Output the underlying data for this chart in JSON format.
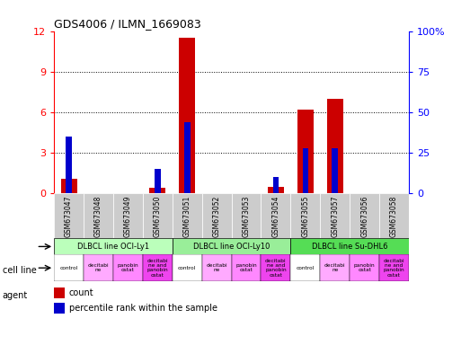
{
  "title": "GDS4006 / ILMN_1669083",
  "samples": [
    "GSM673047",
    "GSM673048",
    "GSM673049",
    "GSM673050",
    "GSM673051",
    "GSM673052",
    "GSM673053",
    "GSM673054",
    "GSM673055",
    "GSM673057",
    "GSM673056",
    "GSM673058"
  ],
  "count_values": [
    1.1,
    0,
    0,
    0.4,
    11.5,
    0,
    0,
    0.5,
    6.2,
    7.0,
    0,
    0
  ],
  "percentile_values": [
    35,
    0,
    0,
    15,
    44,
    0,
    0,
    10,
    28,
    28,
    0,
    0
  ],
  "ylim_left": [
    0,
    12
  ],
  "ylim_right": [
    0,
    100
  ],
  "yticks_left": [
    0,
    3,
    6,
    9,
    12
  ],
  "yticks_right": [
    0,
    25,
    50,
    75,
    100
  ],
  "bar_color_count": "#cc0000",
  "bar_color_pct": "#0000cc",
  "sample_bg_color": "#cccccc",
  "cell_line_colors": [
    "#bbffbb",
    "#99ee99",
    "#55dd55"
  ],
  "cell_line_labels": [
    "DLBCL line OCI-Ly1",
    "DLBCL line OCI-Ly10",
    "DLBCL line Su-DHL6"
  ],
  "cell_line_spans": [
    [
      0,
      3
    ],
    [
      4,
      7
    ],
    [
      8,
      11
    ]
  ],
  "agent_labels": [
    "control",
    "decitabi\nne",
    "panobin\nostat",
    "decitabi\nne and\npanobin\nostat",
    "control",
    "decitabi\nne",
    "panobin\nostat",
    "decitabi\nne and\npanobin\nostat",
    "control",
    "decitabi\nne",
    "panobin\nostat",
    "decitabi\nne and\npanobin\nostat"
  ],
  "agent_facecolors": [
    "#ffffff",
    "#ffaaff",
    "#ff88ff",
    "#ee44ee",
    "#ffffff",
    "#ffaaff",
    "#ff88ff",
    "#ee44ee",
    "#ffffff",
    "#ffaaff",
    "#ff88ff",
    "#ee44ee"
  ],
  "legend_count_color": "#cc0000",
  "legend_pct_color": "#0000cc",
  "figure_bg": "#ffffff",
  "grid_yticks": [
    3,
    6,
    9
  ]
}
